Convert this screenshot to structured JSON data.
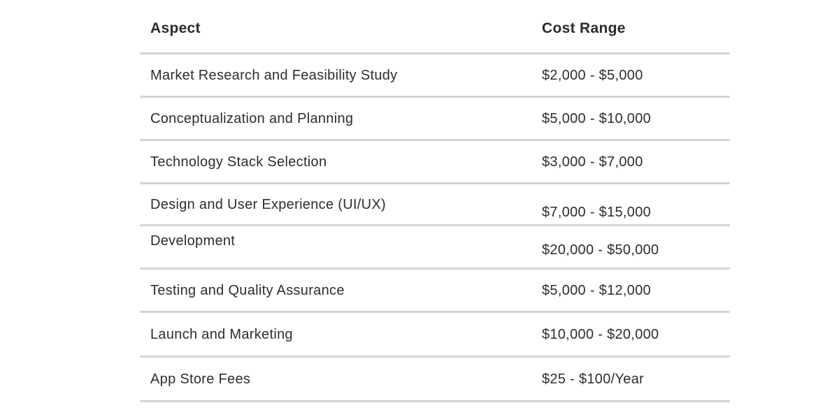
{
  "table": {
    "columns": [
      {
        "label": "Aspect"
      },
      {
        "label": "Cost Range"
      }
    ],
    "rows": [
      {
        "aspect": "Market Research and Feasibility Study",
        "cost_range": "$2,000 - $5,000"
      },
      {
        "aspect": "Conceptualization and Planning",
        "cost_range": "$5,000 - $10,000"
      },
      {
        "aspect": "Technology Stack Selection",
        "cost_range": "$3,000 - $7,000"
      },
      {
        "aspect": "Design and User Experience (UI/UX)",
        "cost_range": "$7,000 - $15,000"
      },
      {
        "aspect": "Development",
        "cost_range": "$20,000 - $50,000"
      },
      {
        "aspect": "Testing and Quality Assurance",
        "cost_range": "$5,000 - $12,000"
      },
      {
        "aspect": "Launch and Marketing",
        "cost_range": "$10,000 - $20,000"
      },
      {
        "aspect": "App Store Fees",
        "cost_range": "$25 - $100/Year"
      }
    ]
  },
  "colors": {
    "text": "#2d2d2d",
    "header_text": "#2b2b2b",
    "divider": "#d5d5d5",
    "background": "#ffffff"
  }
}
